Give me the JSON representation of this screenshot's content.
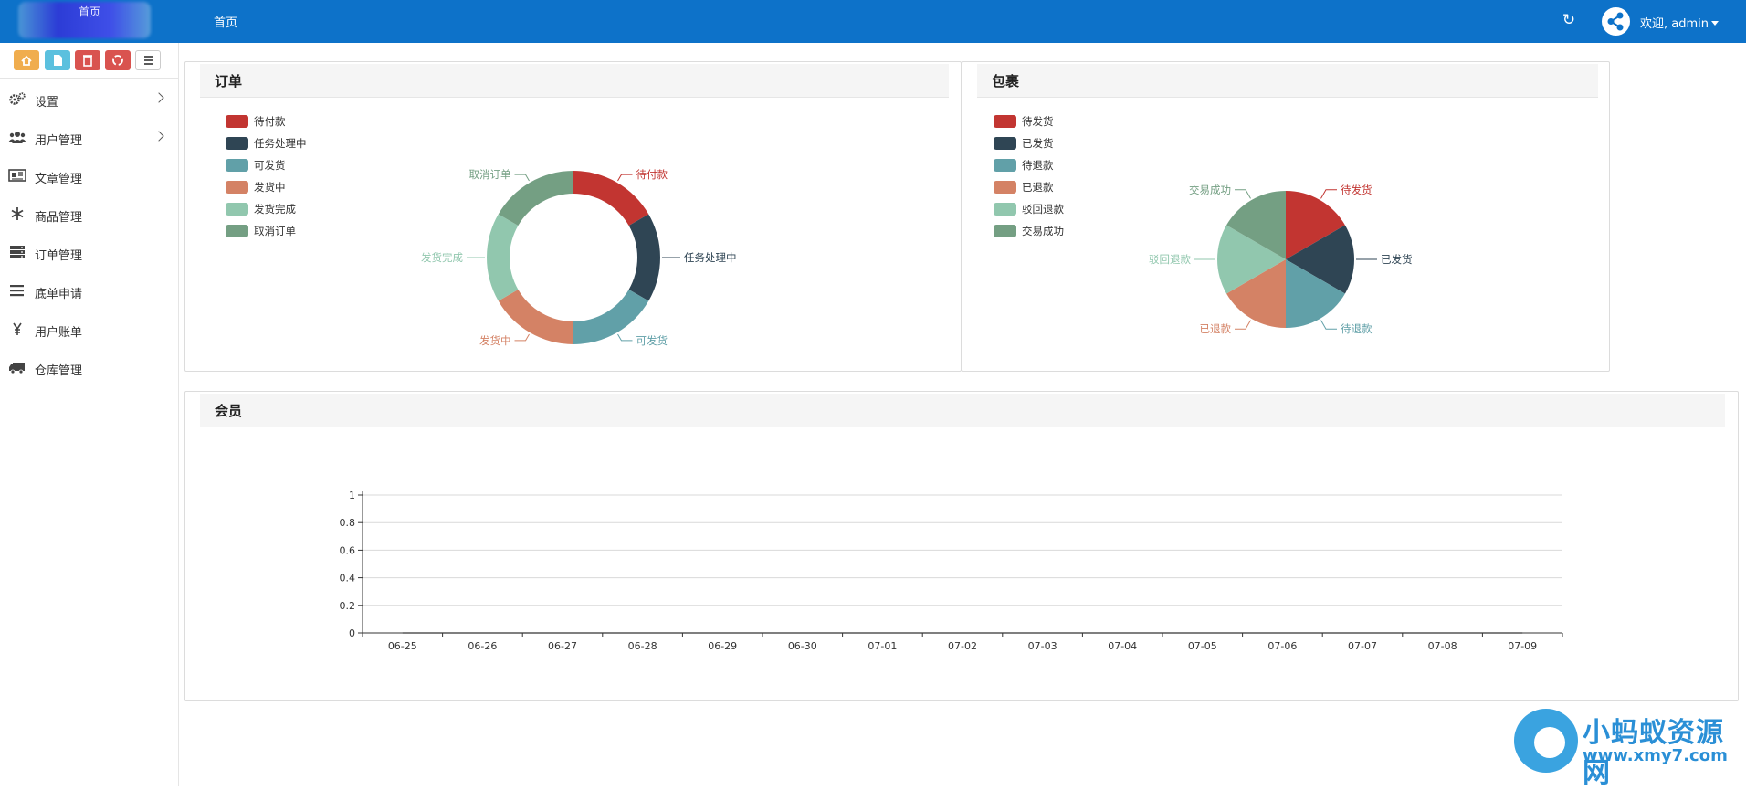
{
  "topbar": {
    "logo_text": "首页",
    "home_link": "首页",
    "refresh_icon": "refresh-icon",
    "user_icon": "share-icon",
    "welcome": "欢迎, admin"
  },
  "quick_buttons": [
    {
      "icon": "home-icon",
      "color": "#f0ad4e"
    },
    {
      "icon": "file-icon",
      "color": "#5bc0de"
    },
    {
      "icon": "trash-icon",
      "color": "#d9534f"
    },
    {
      "icon": "recycle-icon",
      "color": "#d9534f"
    },
    {
      "icon": "list-icon",
      "color": "#ffffff"
    }
  ],
  "sidebar": {
    "items": [
      {
        "label": "设置",
        "icon": "gears-icon",
        "has_arrow": true
      },
      {
        "label": "用户管理",
        "icon": "users-icon",
        "has_arrow": true
      },
      {
        "label": "文章管理",
        "icon": "newspaper-icon",
        "has_arrow": false
      },
      {
        "label": "商品管理",
        "icon": "snowflake-icon",
        "has_arrow": false
      },
      {
        "label": "订单管理",
        "icon": "server-icon",
        "has_arrow": false
      },
      {
        "label": "底单申请",
        "icon": "bars-icon",
        "has_arrow": false
      },
      {
        "label": "用户账单",
        "icon": "yen-icon",
        "has_arrow": false
      },
      {
        "label": "仓库管理",
        "icon": "truck-icon",
        "has_arrow": false
      }
    ]
  },
  "panels": {
    "orders": {
      "title": "订单"
    },
    "packages": {
      "title": "包裹"
    },
    "members": {
      "title": "会员"
    }
  },
  "chart_data": [
    {
      "type": "pie",
      "variant": "donut",
      "title": "订单",
      "categories": [
        "待付款",
        "任务处理中",
        "可发货",
        "发货中",
        "发货完成",
        "取消订单"
      ],
      "values": [
        1,
        1,
        1,
        1,
        1,
        1
      ],
      "colors": [
        "#c23531",
        "#2f4554",
        "#61a0a8",
        "#d48265",
        "#91c7ae",
        "#749f83"
      ],
      "legend": "top-left"
    },
    {
      "type": "pie",
      "title": "包裹",
      "categories": [
        "待发货",
        "已发货",
        "待退款",
        "已退款",
        "驳回退款",
        "交易成功"
      ],
      "values": [
        1,
        1,
        1,
        1,
        1,
        1
      ],
      "colors": [
        "#c23531",
        "#2f4554",
        "#61a0a8",
        "#d48265",
        "#91c7ae",
        "#749f83"
      ],
      "legend": "top-left"
    },
    {
      "type": "line",
      "title": "会员",
      "x": [
        "06-25",
        "06-26",
        "06-27",
        "06-28",
        "06-29",
        "06-30",
        "07-01",
        "07-02",
        "07-03",
        "07-04",
        "07-05",
        "07-06",
        "07-07",
        "07-08",
        "07-09"
      ],
      "yticks": [
        "0",
        "0.2",
        "0.4",
        "0.6",
        "0.8",
        "1"
      ],
      "ylim": [
        0,
        1
      ],
      "grid": true,
      "series": [
        {
          "values": [
            0,
            0,
            0,
            0,
            0,
            0,
            0,
            0,
            0,
            0,
            0,
            0,
            0,
            0,
            0
          ]
        }
      ]
    }
  ],
  "watermark": {
    "title": "小蚂蚁资源网",
    "url": "www.xmy7.com"
  }
}
